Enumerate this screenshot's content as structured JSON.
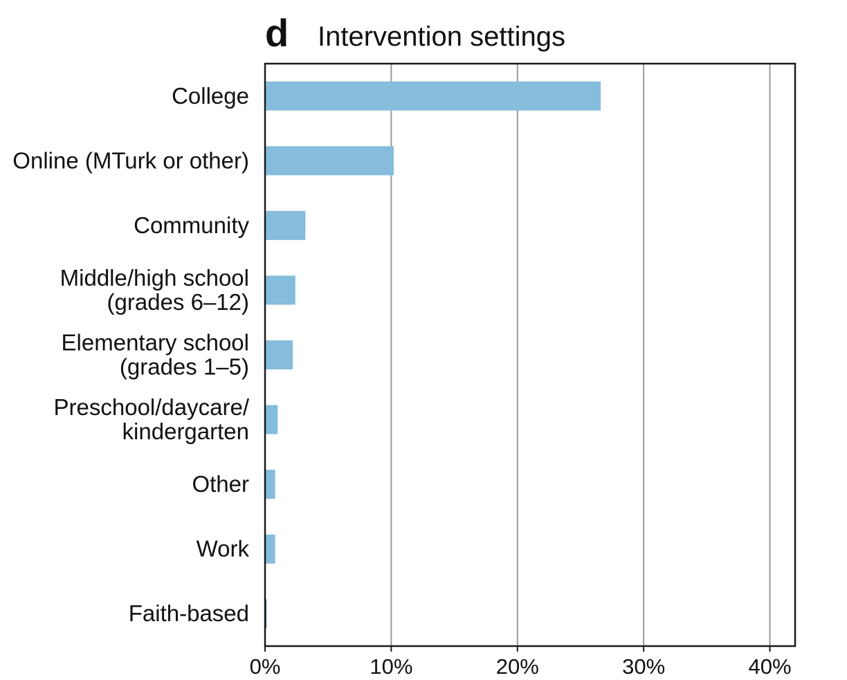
{
  "panel_label": "d",
  "chart_data": {
    "type": "bar",
    "orientation": "horizontal",
    "title": "Intervention settings",
    "xlabel": "",
    "ylabel": "",
    "categories": [
      "College",
      "Online (MTurk or other)",
      "Community",
      "Middle/high school (grades 6–12)",
      "Elementary school (grades 1–5)",
      "Preschool/daycare/ kindergarten",
      "Other",
      "Work",
      "Faith-based"
    ],
    "category_lines": [
      [
        "College"
      ],
      [
        "Online (MTurk or other)"
      ],
      [
        "Community"
      ],
      [
        "Middle/high school",
        "(grades 6–12)"
      ],
      [
        "Elementary school",
        "(grades 1–5)"
      ],
      [
        "Preschool/daycare/",
        "kindergarten"
      ],
      [
        "Other"
      ],
      [
        "Work"
      ],
      [
        "Faith-based"
      ]
    ],
    "values": [
      26.6,
      10.2,
      3.2,
      2.4,
      2.2,
      1.0,
      0.8,
      0.8,
      0.1
    ],
    "xlim": [
      0,
      42
    ],
    "xticks": [
      0,
      10,
      20,
      30,
      40
    ],
    "xtick_labels": [
      "0%",
      "10%",
      "20%",
      "30%",
      "40%"
    ],
    "grid": "vertical",
    "colors": {
      "bar": "#86bcdc",
      "grid": "#9a9a9a",
      "axis": "#1a1a1a",
      "faint_bar": "#2a6f99"
    }
  }
}
